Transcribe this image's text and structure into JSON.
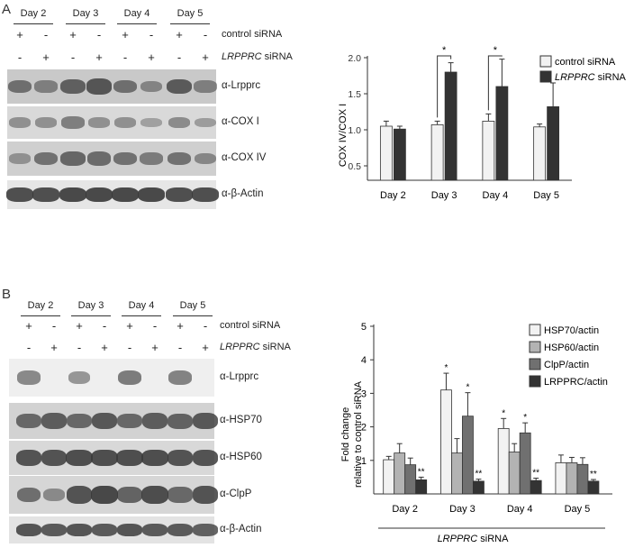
{
  "panels": {
    "a": "A",
    "b": "B"
  },
  "days": [
    "Day 2",
    "Day 3",
    "Day 4",
    "Day 5"
  ],
  "signs": [
    "+",
    "-",
    "+",
    "-",
    "+",
    "-",
    "+",
    "-"
  ],
  "signs_inv": [
    "-",
    "+",
    "-",
    "+",
    "-",
    "+",
    "-",
    "+"
  ],
  "conditions": {
    "control": "control siRNA",
    "lrpprc_italic": "LRPPRC",
    "lrpprc_rest": " siRNA"
  },
  "blots_a": [
    "α-Lrpprc",
    "α-COX I",
    "α-COX IV",
    "α-β-Actin"
  ],
  "blots_b": [
    "α-Lrpprc",
    "α-HSP70",
    "α-HSP60",
    "α-ClpP",
    "α-β-Actin"
  ],
  "colors": {
    "control": "#f2f2f2",
    "lrpprc": "#333333",
    "hsp70": "#f2f2f2",
    "hsp60": "#b3b3b3",
    "clpp": "#707070",
    "lrpprc_actin": "#333333"
  },
  "chart_data": [
    {
      "type": "bar",
      "categories": [
        "Day 2",
        "Day 3",
        "Day 4",
        "Day 5"
      ],
      "ylabel": "COX IV/COX I",
      "xlabel": "",
      "ylim": [
        0.3,
        2.0
      ],
      "yticks": [
        "2.0",
        "1.5",
        "1.0",
        "0.5"
      ],
      "legend_position": "top-right",
      "series": [
        {
          "name": "control siRNA",
          "values": [
            1.05,
            1.07,
            1.12,
            1.04
          ],
          "errors": [
            0.07,
            0.05,
            0.1,
            0.04
          ]
        },
        {
          "name": "LRPPRC siRNA",
          "values": [
            1.01,
            1.8,
            1.6,
            1.32
          ],
          "errors": [
            0.04,
            0.13,
            0.38,
            0.33
          ]
        }
      ],
      "significance": [
        {
          "category": "Day 3",
          "label": "*"
        },
        {
          "category": "Day 4",
          "label": "*"
        }
      ]
    },
    {
      "type": "bar",
      "categories": [
        "Day 2",
        "Day 3",
        "Day 4",
        "Day 5"
      ],
      "ylabel_line1": "Fold change",
      "ylabel_line2": "relative to control siRNA",
      "xlabel_italic": "LRPPRC",
      "xlabel_rest": " siRNA",
      "ylim": [
        0,
        5
      ],
      "yticks": [
        "5",
        "4",
        "3",
        "2",
        "1"
      ],
      "legend_position": "top-right",
      "series": [
        {
          "name": "HSP70/actin",
          "values": [
            1.02,
            3.1,
            1.95,
            0.93
          ],
          "errors": [
            0.1,
            0.5,
            0.3,
            0.23
          ]
        },
        {
          "name": "HSP60/actin",
          "values": [
            1.22,
            1.22,
            1.25,
            0.93
          ],
          "errors": [
            0.28,
            0.43,
            0.25,
            0.16
          ]
        },
        {
          "name": "ClpP/actin",
          "values": [
            0.87,
            2.32,
            1.82,
            0.88
          ],
          "errors": [
            0.2,
            0.7,
            0.3,
            0.2
          ]
        },
        {
          "name": "LRPPRC/actin",
          "values": [
            0.42,
            0.38,
            0.4,
            0.38
          ],
          "errors": [
            0.08,
            0.06,
            0.07,
            0.05
          ]
        }
      ],
      "annotations": [
        {
          "category": "Day 2",
          "series": "LRPPRC/actin",
          "label": "**"
        },
        {
          "category": "Day 3",
          "series": "HSP70/actin",
          "label": "*"
        },
        {
          "category": "Day 3",
          "series": "ClpP/actin",
          "label": "*"
        },
        {
          "category": "Day 3",
          "series": "LRPPRC/actin",
          "label": "**"
        },
        {
          "category": "Day 4",
          "series": "HSP70/actin",
          "label": "*"
        },
        {
          "category": "Day 4",
          "series": "ClpP/actin",
          "label": "*"
        },
        {
          "category": "Day 4",
          "series": "LRPPRC/actin",
          "label": "**"
        },
        {
          "category": "Day 5",
          "series": "LRPPRC/actin",
          "label": "**"
        }
      ]
    }
  ]
}
